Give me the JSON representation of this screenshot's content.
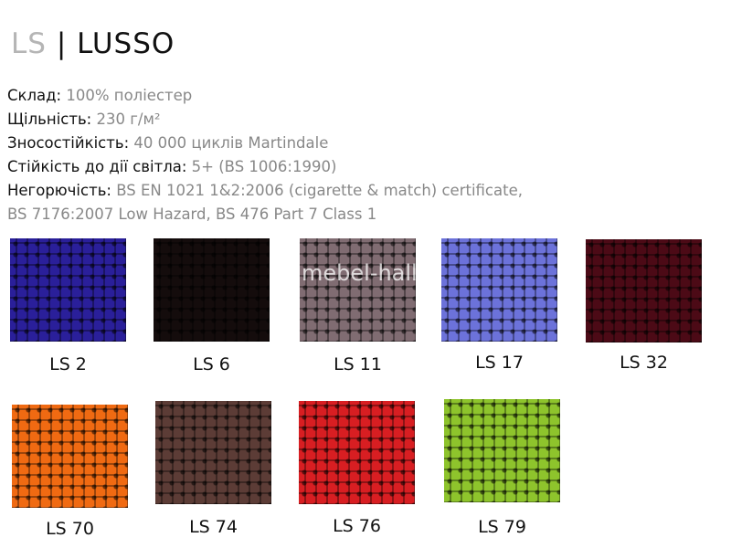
{
  "header": {
    "code": "LS",
    "separator": "|",
    "name": "LUSSO"
  },
  "specs": [
    {
      "label": "Склад:",
      "value": "100% поліестер"
    },
    {
      "label": "Щільність:",
      "value": "230 г/м²"
    },
    {
      "label": "Зносостійкість:",
      "value": "40 000 циклів Martindale"
    },
    {
      "label": "Стійкість до дії світла:",
      "value": "5+ (BS 1006:1990)"
    },
    {
      "label": "Негорючість:",
      "value": "BS EN 1021 1&2:2006 (cigarette & match) certificate,"
    },
    {
      "label": "",
      "value": "BS 7176:2007 Low Hazard, BS 476 Part 7 Class 1"
    }
  ],
  "watermark": "mebel-hall",
  "swatches": [
    {
      "label": "LS 2",
      "color": "#2a1f9a"
    },
    {
      "label": "LS 6",
      "color": "#140c0c"
    },
    {
      "label": "LS 11",
      "color": "#806c72"
    },
    {
      "label": "LS 17",
      "color": "#6c72da"
    },
    {
      "label": "LS 32",
      "color": "#4c0a16"
    },
    {
      "label": "LS 70",
      "color": "#f06a12"
    },
    {
      "label": "LS 74",
      "color": "#5c3c36"
    },
    {
      "label": "LS 76",
      "color": "#d81e22"
    },
    {
      "label": "LS 79",
      "color": "#8ec42c"
    }
  ]
}
